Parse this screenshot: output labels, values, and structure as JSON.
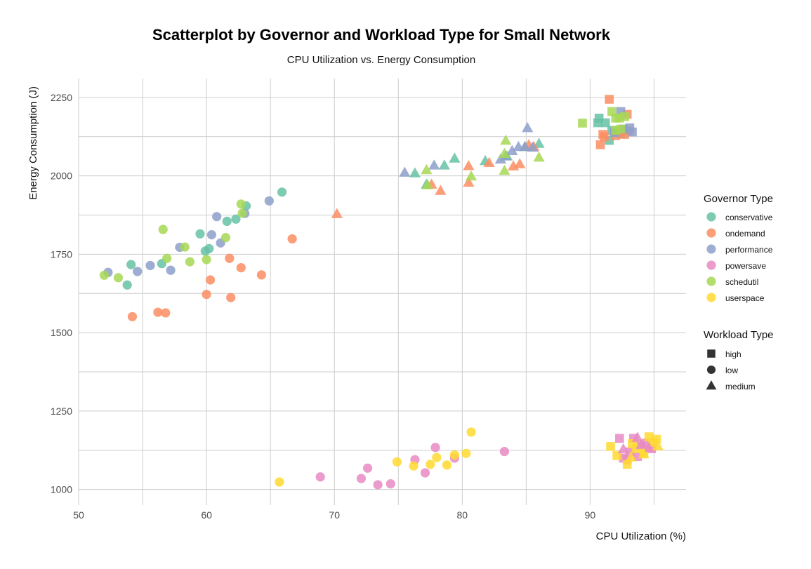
{
  "chart_data": {
    "type": "scatter",
    "title": "Scatterplot by Governor and Workload Type for Small Network",
    "subtitle": "CPU Utilization vs. Energy Consumption",
    "xlabel": "CPU Utilization (%)",
    "ylabel": "Energy Consumption (J)",
    "xlim": [
      50,
      97.5
    ],
    "ylim": [
      950,
      2310
    ],
    "xticks": [
      "50",
      "60",
      "70",
      "80",
      "90"
    ],
    "yticks": [
      "1000",
      "1250",
      "1500",
      "1750",
      "2000",
      "2250"
    ],
    "grid": true,
    "legend_position": "right",
    "color_legend_title": "Governor Type",
    "shape_legend_title": "Workload Type",
    "governors": [
      {
        "name": "conservative",
        "color": "#66c2a5"
      },
      {
        "name": "ondemand",
        "color": "#fc8d62"
      },
      {
        "name": "performance",
        "color": "#8da0cb"
      },
      {
        "name": "powersave",
        "color": "#e78ac3"
      },
      {
        "name": "schedutil",
        "color": "#a6d854"
      },
      {
        "name": "userspace",
        "color": "#ffd92f"
      }
    ],
    "workloads": [
      {
        "name": "high",
        "shape": "square"
      },
      {
        "name": "low",
        "shape": "circle"
      },
      {
        "name": "medium",
        "shape": "triangle"
      }
    ],
    "series": [
      {
        "governor": "conservative",
        "workload": "low",
        "points": [
          [
            54.1,
            1717
          ],
          [
            53.8,
            1652
          ],
          [
            56.5,
            1720
          ],
          [
            59.5,
            1815
          ],
          [
            59.9,
            1760
          ],
          [
            60.2,
            1768
          ],
          [
            61.6,
            1855
          ],
          [
            62.3,
            1862
          ],
          [
            63.1,
            1904
          ],
          [
            65.9,
            1948
          ]
        ]
      },
      {
        "governor": "ondemand",
        "workload": "low",
        "points": [
          [
            54.2,
            1551
          ],
          [
            56.2,
            1565
          ],
          [
            56.8,
            1563
          ],
          [
            60.0,
            1622
          ],
          [
            60.3,
            1668
          ],
          [
            61.8,
            1737
          ],
          [
            61.9,
            1612
          ],
          [
            62.7,
            1707
          ],
          [
            64.3,
            1684
          ],
          [
            66.7,
            1799
          ]
        ]
      },
      {
        "governor": "performance",
        "workload": "low",
        "points": [
          [
            52.3,
            1692
          ],
          [
            54.6,
            1695
          ],
          [
            55.6,
            1714
          ],
          [
            57.2,
            1699
          ],
          [
            57.9,
            1772
          ],
          [
            60.4,
            1812
          ],
          [
            60.8,
            1870
          ],
          [
            61.1,
            1786
          ],
          [
            63.0,
            1880
          ],
          [
            64.9,
            1920
          ]
        ]
      },
      {
        "governor": "schedutil",
        "workload": "low",
        "points": [
          [
            52.0,
            1683
          ],
          [
            53.1,
            1675
          ],
          [
            56.6,
            1829
          ],
          [
            56.9,
            1737
          ],
          [
            58.3,
            1773
          ],
          [
            58.7,
            1726
          ],
          [
            60.0,
            1733
          ],
          [
            61.5,
            1803
          ],
          [
            62.7,
            1910
          ],
          [
            62.8,
            1881
          ]
        ]
      },
      {
        "governor": "powersave",
        "workload": "low",
        "points": [
          [
            68.9,
            1040
          ],
          [
            72.1,
            1035
          ],
          [
            72.6,
            1068
          ],
          [
            73.4,
            1015
          ],
          [
            74.4,
            1018
          ],
          [
            76.3,
            1095
          ],
          [
            77.1,
            1053
          ],
          [
            77.9,
            1134
          ],
          [
            79.4,
            1100
          ],
          [
            83.3,
            1121
          ]
        ]
      },
      {
        "governor": "userspace",
        "workload": "low",
        "points": [
          [
            65.7,
            1024
          ],
          [
            74.9,
            1088
          ],
          [
            76.2,
            1075
          ],
          [
            77.5,
            1080
          ],
          [
            78.0,
            1102
          ],
          [
            78.8,
            1078
          ],
          [
            79.4,
            1110
          ],
          [
            80.3,
            1115
          ],
          [
            80.7,
            1183
          ]
        ]
      },
      {
        "governor": "conservative",
        "workload": "medium",
        "points": [
          [
            76.3,
            2008
          ],
          [
            77.2,
            1972
          ],
          [
            78.6,
            2033
          ],
          [
            79.4,
            2055
          ],
          [
            81.8,
            2047
          ],
          [
            83.5,
            2062
          ],
          [
            84.9,
            2092
          ],
          [
            86.0,
            2102
          ]
        ]
      },
      {
        "governor": "ondemand",
        "workload": "medium",
        "points": [
          [
            70.2,
            1878
          ],
          [
            77.6,
            1972
          ],
          [
            78.3,
            1952
          ],
          [
            80.5,
            2031
          ],
          [
            80.5,
            1978
          ],
          [
            82.1,
            2041
          ],
          [
            84.0,
            2030
          ],
          [
            84.5,
            2037
          ],
          [
            85.2,
            2098
          ],
          [
            85.6,
            2092
          ]
        ]
      },
      {
        "governor": "performance",
        "workload": "medium",
        "points": [
          [
            75.5,
            2010
          ],
          [
            77.8,
            2033
          ],
          [
            83.0,
            2052
          ],
          [
            83.4,
            2062
          ],
          [
            83.9,
            2079
          ],
          [
            84.4,
            2092
          ],
          [
            84.9,
            2092
          ],
          [
            85.1,
            2152
          ],
          [
            85.5,
            2090
          ]
        ]
      },
      {
        "governor": "schedutil",
        "workload": "medium",
        "points": [
          [
            77.2,
            2018
          ],
          [
            77.3,
            1970
          ],
          [
            80.7,
            1998
          ],
          [
            83.3,
            2070
          ],
          [
            83.3,
            2016
          ],
          [
            83.4,
            2112
          ],
          [
            86.0,
            2058
          ]
        ]
      },
      {
        "governor": "conservative",
        "workload": "high",
        "points": [
          [
            90.6,
            2169
          ],
          [
            90.7,
            2184
          ],
          [
            91.2,
            2169
          ],
          [
            91.5,
            2113
          ],
          [
            91.7,
            2145
          ],
          [
            91.9,
            2138
          ],
          [
            92.4,
            2134
          ],
          [
            92.6,
            2147
          ]
        ]
      },
      {
        "governor": "ondemand",
        "workload": "high",
        "points": [
          [
            90.8,
            2099
          ],
          [
            91.0,
            2132
          ],
          [
            91.1,
            2124
          ],
          [
            91.5,
            2244
          ],
          [
            92.0,
            2128
          ],
          [
            92.3,
            2140
          ],
          [
            92.7,
            2132
          ],
          [
            92.9,
            2196
          ],
          [
            93.0,
            2143
          ]
        ]
      },
      {
        "governor": "performance",
        "workload": "high",
        "points": [
          [
            91.9,
            2138
          ],
          [
            92.4,
            2205
          ],
          [
            92.6,
            2149
          ],
          [
            93.1,
            2153
          ],
          [
            93.3,
            2140
          ]
        ]
      },
      {
        "governor": "schedutil",
        "workload": "high",
        "points": [
          [
            89.4,
            2168
          ],
          [
            91.7,
            2205
          ],
          [
            92.0,
            2184
          ],
          [
            92.3,
            2184
          ],
          [
            92.4,
            2149
          ],
          [
            92.7,
            2189
          ],
          [
            92.0,
            2145
          ]
        ]
      },
      {
        "governor": "powersave",
        "workload": "high",
        "points": [
          [
            92.3,
            1163
          ],
          [
            92.6,
            1100
          ],
          [
            92.9,
            1095
          ],
          [
            93.1,
            1120
          ],
          [
            93.4,
            1163
          ],
          [
            93.7,
            1105
          ],
          [
            94.0,
            1138
          ],
          [
            94.4,
            1148
          ],
          [
            94.8,
            1130
          ]
        ]
      },
      {
        "governor": "userspace",
        "workload": "high",
        "points": [
          [
            91.6,
            1137
          ],
          [
            92.1,
            1108
          ],
          [
            92.9,
            1080
          ],
          [
            93.3,
            1146
          ],
          [
            93.6,
            1130
          ],
          [
            94.2,
            1118
          ],
          [
            94.6,
            1168
          ],
          [
            94.9,
            1150
          ],
          [
            95.2,
            1160
          ]
        ]
      },
      {
        "governor": "powersave",
        "workload": "medium",
        "points": [
          [
            92.6,
            1128
          ],
          [
            93.7,
            1165
          ],
          [
            94.0,
            1142
          ],
          [
            94.6,
            1132
          ]
        ]
      },
      {
        "governor": "userspace",
        "workload": "medium",
        "points": [
          [
            93.2,
            1102
          ],
          [
            94.2,
            1112
          ],
          [
            95.3,
            1138
          ]
        ]
      }
    ]
  }
}
